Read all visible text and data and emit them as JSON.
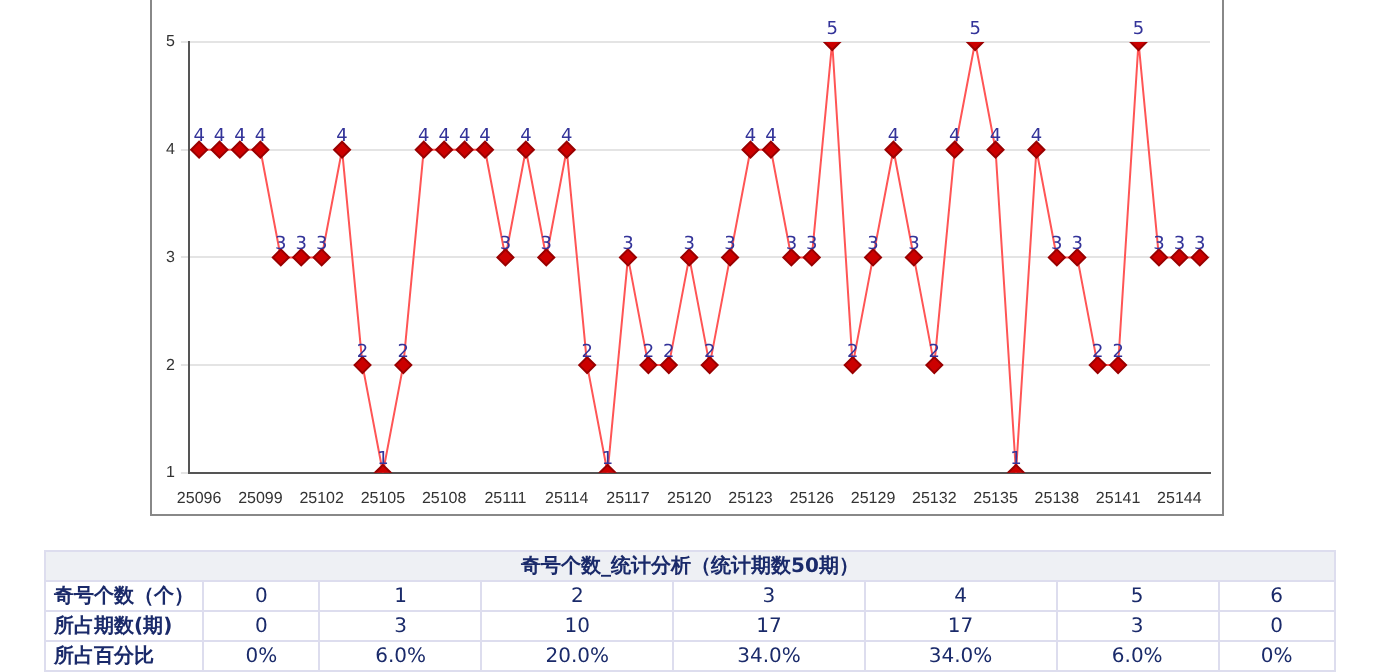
{
  "chart_data": {
    "type": "line",
    "categories": [
      "25096",
      null,
      null,
      "25099",
      null,
      null,
      "25102",
      null,
      null,
      "25105",
      null,
      null,
      "25108",
      null,
      null,
      "25111",
      null,
      null,
      "25114",
      null,
      null,
      "25117",
      null,
      null,
      "25120",
      null,
      null,
      "25123",
      null,
      null,
      "25126",
      null,
      null,
      "25129",
      null,
      null,
      "25132",
      null,
      null,
      "25135",
      null,
      null,
      "25138",
      null,
      null,
      "25141",
      null,
      null,
      "25144",
      null
    ],
    "series": [
      {
        "color": "#ff5555",
        "values": [
          4,
          4,
          4,
          4,
          3,
          3,
          3,
          4,
          2,
          1,
          2,
          4,
          4,
          4,
          4,
          3,
          4,
          3,
          4,
          2,
          1,
          3,
          2,
          2,
          3,
          2,
          3,
          4,
          4,
          3,
          3,
          5,
          2,
          3,
          4,
          3,
          2,
          4,
          5,
          4,
          1,
          4,
          3,
          3,
          2,
          2,
          5,
          3,
          3,
          3
        ]
      }
    ],
    "ylim": [
      1,
      5
    ],
    "yticks": [
      1,
      2,
      3,
      4,
      5
    ],
    "grid": "y",
    "marker": "diamond",
    "data_labels": true,
    "legend": false,
    "annotations": [
      "奇号个数_统计分析（统计期数50期）",
      "奇号个数（个）",
      "0",
      "1",
      "2",
      "3",
      "4",
      "5",
      "6",
      "所占期数(期)",
      "0",
      "3",
      "10",
      "17",
      "17",
      "3",
      "0",
      "所占百分比",
      "0%",
      "6.0%",
      "20.0%",
      "34.0%",
      "34.0%",
      "6.0%",
      "0%"
    ]
  }
}
